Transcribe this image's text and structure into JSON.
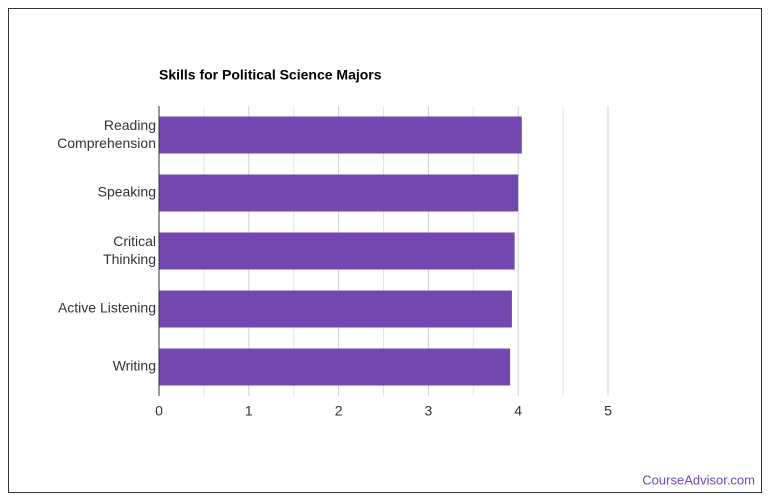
{
  "chart_data": {
    "type": "bar",
    "orientation": "horizontal",
    "title": "Skills for Political Science Majors",
    "categories": [
      "Reading Comprehension",
      "Speaking",
      "Critical Thinking",
      "Active Listening",
      "Writing"
    ],
    "values": [
      4.04,
      4.0,
      3.96,
      3.93,
      3.91
    ],
    "color": "#7347b0",
    "xlim": [
      0,
      5
    ],
    "xticks": [
      0,
      1,
      2,
      3,
      4,
      5
    ],
    "minor_xticks": [
      0.5,
      1.5,
      2.5,
      3.5,
      4.5
    ],
    "grid": true
  },
  "watermark": "CourseAdvisor.com"
}
